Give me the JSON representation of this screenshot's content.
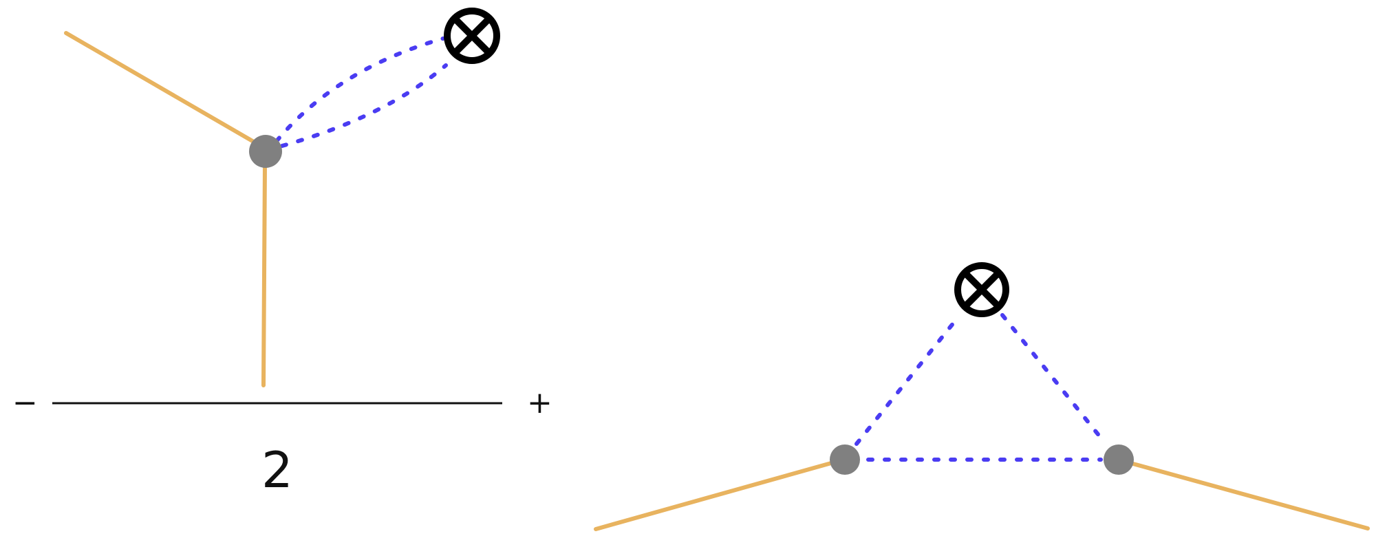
{
  "labels": {
    "minus": "−",
    "plus": "+",
    "factor": "2"
  },
  "colors": {
    "fermion_line": "#e8b35f",
    "dotted_line": "#4a3cf2",
    "vertex": "#808080",
    "insertion": "#000000",
    "axis_line": "#111111"
  },
  "icons": {
    "insertion": "circled-times-icon"
  }
}
